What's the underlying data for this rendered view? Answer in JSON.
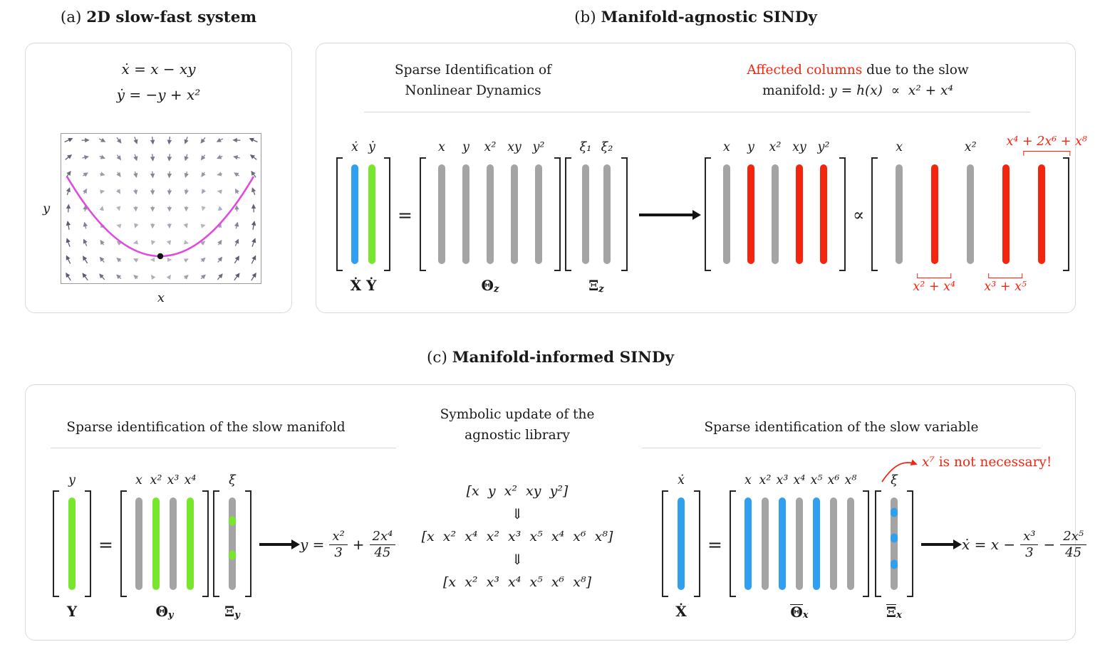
{
  "colors": {
    "blue": "#2f9ff0",
    "green": "#79e62e",
    "gray": "#a4a4a4",
    "red": "#f3250f",
    "magenta": "#e04ae0",
    "arrow_black": "#141414"
  },
  "panel_a": {
    "title_prefix": "(a)",
    "title": "2D slow-fast system",
    "eq1": "ẋ = x − xy",
    "eq2": "ẏ = −y + x²",
    "xlabel": "x",
    "ylabel": "y"
  },
  "panel_b": {
    "title_prefix": "(b)",
    "title": "Manifold-agnostic SINDy",
    "header_left_line1": "Sparse Identification of",
    "header_left_line2": "Nonlinear Dynamics",
    "header_right_red": "Affected columns",
    "header_right_rest": " due to the slow",
    "header_right_line2_plain": "manifold:",
    "header_right_line2_math": "y = h(x)  ∝  x² + x⁴",
    "equals": "=",
    "prop": "∝",
    "xy_matrix": {
      "labels": [
        "ẋ",
        "ẏ"
      ],
      "bars": [
        {
          "color": "blue"
        },
        {
          "color": "green"
        }
      ],
      "name": "Ẋ Ẏ"
    },
    "theta_z": {
      "labels": [
        "x",
        "y",
        "x²",
        "xy",
        "y²"
      ],
      "bars": [
        {
          "color": "gray"
        },
        {
          "color": "gray"
        },
        {
          "color": "gray"
        },
        {
          "color": "gray"
        },
        {
          "color": "gray"
        }
      ],
      "name_base": "Θ",
      "name_sub": "z"
    },
    "xi_z": {
      "labels": [
        "ξ₁",
        "ξ₂"
      ],
      "bars": [
        {
          "color": "gray"
        },
        {
          "color": "gray"
        }
      ],
      "name_base": "Ξ",
      "name_sub": "z"
    },
    "affected": {
      "labels": [
        "x",
        "y",
        "x²",
        "xy",
        "y²"
      ],
      "bars": [
        {
          "color": "gray"
        },
        {
          "color": "red"
        },
        {
          "color": "gray"
        },
        {
          "color": "red"
        },
        {
          "color": "red"
        }
      ]
    },
    "substituted": {
      "labels": [
        "x",
        "",
        "x²",
        "",
        ""
      ],
      "bars": [
        {
          "color": "gray"
        },
        {
          "color": "red"
        },
        {
          "color": "gray"
        },
        {
          "color": "red"
        },
        {
          "color": "red"
        }
      ],
      "top_red_label": "x⁴ + 2x⁶ + x⁸",
      "bottom_red_label_1": "x² + x⁴",
      "bottom_red_label_2": "x³ + x⁵"
    }
  },
  "panel_c": {
    "title_prefix": "(c)",
    "title": "Manifold-informed SINDy",
    "left": {
      "header": "Sparse identification of the slow manifold",
      "equals": "=",
      "y_matrix": {
        "labels": [
          "y"
        ],
        "bars": [
          {
            "color": "green"
          }
        ],
        "name": "Y"
      },
      "theta_y": {
        "labels": [
          "x",
          "x²",
          "x³",
          "x⁴"
        ],
        "bars": [
          {
            "color": "gray"
          },
          {
            "color": "green"
          },
          {
            "color": "gray"
          },
          {
            "color": "green"
          }
        ],
        "name_base": "Θ",
        "name_sub": "y"
      },
      "xi_y": {
        "labels": [
          "ξ"
        ],
        "bars": [
          {
            "color": "gray",
            "dots": [
              {
                "color": "green",
                "pos": 0.25
              },
              {
                "color": "green",
                "pos": 0.62
              }
            ]
          }
        ],
        "name_base": "Ξ",
        "name_sub": "y"
      },
      "result": {
        "lhs": "y =",
        "num1": "x²",
        "den1": "3",
        "op": "+",
        "num2": "2x⁴",
        "den2": "45"
      }
    },
    "middle": {
      "header_line1": "Symbolic update of the",
      "header_line2": "agnostic library",
      "row1": "[x  y  x²  xy  y²]",
      "arrow": "⇓",
      "row2": "[x  x²  x⁴  x²  x³  x⁵  x⁴  x⁶  x⁸]",
      "row3": "[x  x²  x³  x⁴  x⁵  x⁶  x⁸]"
    },
    "right": {
      "header": "Sparse identification of the slow variable",
      "equals": "=",
      "x_matrix": {
        "labels": [
          "ẋ"
        ],
        "bars": [
          {
            "color": "blue"
          }
        ],
        "name": "Ẋ"
      },
      "theta_x": {
        "labels": [
          "x",
          "x²",
          "x³",
          "x⁴",
          "x⁵",
          "x⁶",
          "x⁸"
        ],
        "bars": [
          {
            "color": "blue"
          },
          {
            "color": "gray"
          },
          {
            "color": "blue"
          },
          {
            "color": "gray"
          },
          {
            "color": "blue"
          },
          {
            "color": "gray"
          },
          {
            "color": "gray"
          }
        ],
        "name_base": "Θ",
        "name_sub": "x"
      },
      "xi_x": {
        "labels": [
          "ξ"
        ],
        "bars": [
          {
            "color": "gray",
            "dots": [
              {
                "color": "blue",
                "pos": 0.16
              },
              {
                "color": "blue",
                "pos": 0.44
              },
              {
                "color": "blue",
                "pos": 0.72
              }
            ]
          }
        ],
        "name_base": "Ξ",
        "name_sub": "x"
      },
      "note_math": "x⁷",
      "note_rest": " is not necessary!",
      "result": {
        "lhs": "ẋ = x −",
        "num1": "x³",
        "den1": "3",
        "op": "−",
        "num2": "2x⁵",
        "den2": "45"
      }
    }
  }
}
